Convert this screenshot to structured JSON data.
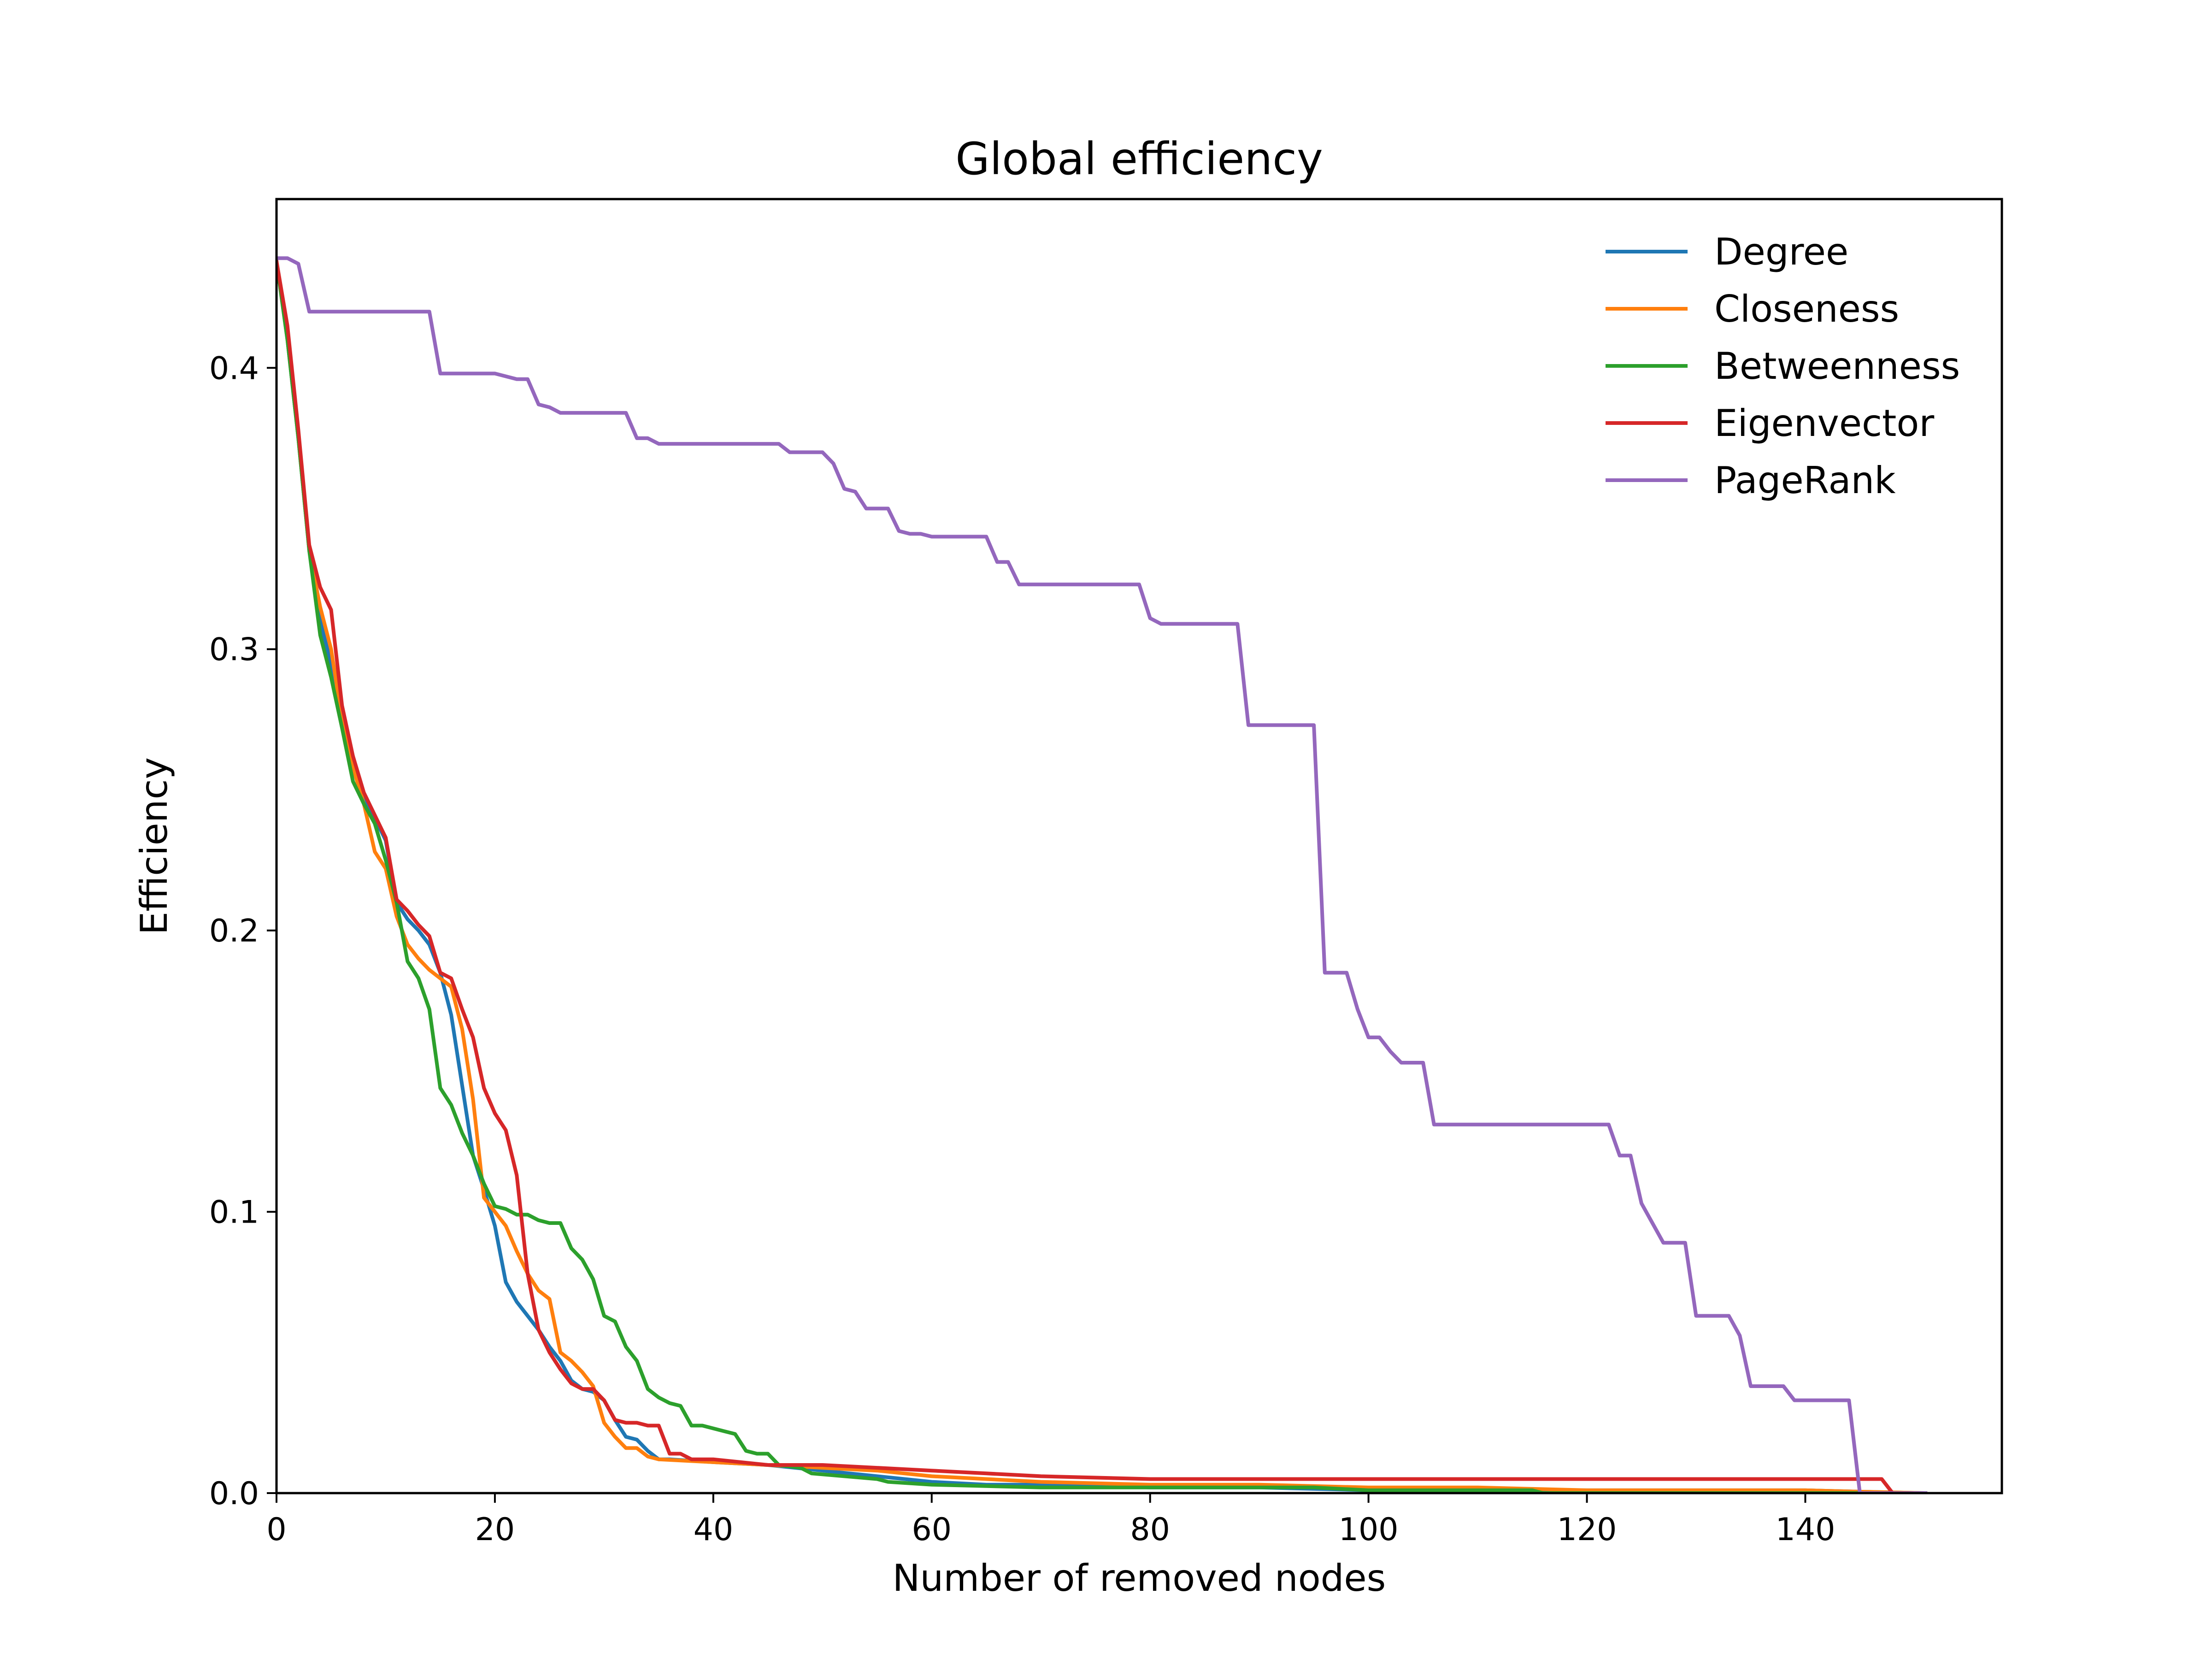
{
  "chart_data": {
    "type": "line",
    "title": "Global efficiency",
    "xlabel": "Number of removed nodes",
    "ylabel": "Efficiency",
    "xlim": [
      0,
      158
    ],
    "ylim": [
      0,
      0.46
    ],
    "xticks": [
      0,
      20,
      40,
      60,
      80,
      100,
      120,
      140
    ],
    "xtick_labels": [
      "0",
      "20",
      "40",
      "60",
      "80",
      "100",
      "120",
      "140"
    ],
    "yticks": [
      0.0,
      0.1,
      0.2,
      0.3,
      0.4
    ],
    "ytick_labels": [
      "0.0",
      "0.1",
      "0.2",
      "0.3",
      "0.4"
    ],
    "grid": false,
    "legend_position": "top-right",
    "series": [
      {
        "name": "Degree",
        "color": "#1f77b4",
        "points": [
          [
            0,
            0.438
          ],
          [
            1,
            0.41
          ],
          [
            2,
            0.375
          ],
          [
            3,
            0.335
          ],
          [
            4,
            0.31
          ],
          [
            5,
            0.295
          ],
          [
            6,
            0.275
          ],
          [
            7,
            0.258
          ],
          [
            8,
            0.248
          ],
          [
            9,
            0.24
          ],
          [
            10,
            0.232
          ],
          [
            11,
            0.21
          ],
          [
            12,
            0.204
          ],
          [
            13,
            0.2
          ],
          [
            14,
            0.195
          ],
          [
            15,
            0.185
          ],
          [
            16,
            0.17
          ],
          [
            17,
            0.145
          ],
          [
            18,
            0.12
          ],
          [
            19,
            0.108
          ],
          [
            20,
            0.095
          ],
          [
            21,
            0.075
          ],
          [
            22,
            0.068
          ],
          [
            23,
            0.063
          ],
          [
            24,
            0.058
          ],
          [
            25,
            0.052
          ],
          [
            26,
            0.047
          ],
          [
            27,
            0.04
          ],
          [
            28,
            0.037
          ],
          [
            29,
            0.036
          ],
          [
            30,
            0.033
          ],
          [
            31,
            0.026
          ],
          [
            32,
            0.02
          ],
          [
            33,
            0.019
          ],
          [
            34,
            0.015
          ],
          [
            35,
            0.012
          ],
          [
            36,
            0.012
          ],
          [
            40,
            0.011
          ],
          [
            45,
            0.01
          ],
          [
            50,
            0.008
          ],
          [
            55,
            0.006
          ],
          [
            60,
            0.004
          ],
          [
            65,
            0.003
          ],
          [
            70,
            0.003
          ],
          [
            80,
            0.002
          ],
          [
            90,
            0.002
          ],
          [
            100,
            0.001
          ],
          [
            110,
            0.001
          ],
          [
            120,
            0.001
          ],
          [
            130,
            0.001
          ],
          [
            140,
            0.001
          ],
          [
            145,
            0.0005
          ],
          [
            151,
            0.0
          ]
        ]
      },
      {
        "name": "Closeness",
        "color": "#ff7f0e",
        "points": [
          [
            0,
            0.438
          ],
          [
            1,
            0.41
          ],
          [
            2,
            0.375
          ],
          [
            3,
            0.335
          ],
          [
            4,
            0.315
          ],
          [
            5,
            0.3
          ],
          [
            6,
            0.275
          ],
          [
            7,
            0.258
          ],
          [
            8,
            0.245
          ],
          [
            9,
            0.228
          ],
          [
            10,
            0.222
          ],
          [
            11,
            0.205
          ],
          [
            12,
            0.195
          ],
          [
            13,
            0.19
          ],
          [
            14,
            0.186
          ],
          [
            15,
            0.183
          ],
          [
            16,
            0.18
          ],
          [
            17,
            0.165
          ],
          [
            18,
            0.14
          ],
          [
            19,
            0.105
          ],
          [
            20,
            0.1
          ],
          [
            21,
            0.095
          ],
          [
            22,
            0.086
          ],
          [
            23,
            0.078
          ],
          [
            24,
            0.072
          ],
          [
            25,
            0.069
          ],
          [
            26,
            0.05
          ],
          [
            27,
            0.047
          ],
          [
            28,
            0.043
          ],
          [
            29,
            0.038
          ],
          [
            30,
            0.025
          ],
          [
            31,
            0.02
          ],
          [
            32,
            0.016
          ],
          [
            33,
            0.016
          ],
          [
            34,
            0.013
          ],
          [
            35,
            0.012
          ],
          [
            40,
            0.011
          ],
          [
            45,
            0.01
          ],
          [
            50,
            0.009
          ],
          [
            55,
            0.008
          ],
          [
            60,
            0.006
          ],
          [
            65,
            0.005
          ],
          [
            70,
            0.004
          ],
          [
            80,
            0.003
          ],
          [
            90,
            0.003
          ],
          [
            100,
            0.002
          ],
          [
            110,
            0.002
          ],
          [
            120,
            0.001
          ],
          [
            130,
            0.001
          ],
          [
            140,
            0.001
          ],
          [
            145,
            0.0005
          ],
          [
            151,
            0.0
          ]
        ]
      },
      {
        "name": "Betweenness",
        "color": "#2ca02c",
        "points": [
          [
            0,
            0.438
          ],
          [
            1,
            0.41
          ],
          [
            2,
            0.375
          ],
          [
            3,
            0.335
          ],
          [
            4,
            0.305
          ],
          [
            5,
            0.29
          ],
          [
            6,
            0.272
          ],
          [
            7,
            0.253
          ],
          [
            8,
            0.245
          ],
          [
            9,
            0.238
          ],
          [
            10,
            0.225
          ],
          [
            11,
            0.21
          ],
          [
            12,
            0.189
          ],
          [
            13,
            0.183
          ],
          [
            14,
            0.172
          ],
          [
            15,
            0.144
          ],
          [
            16,
            0.138
          ],
          [
            17,
            0.128
          ],
          [
            18,
            0.12
          ],
          [
            19,
            0.11
          ],
          [
            20,
            0.102
          ],
          [
            21,
            0.101
          ],
          [
            22,
            0.099
          ],
          [
            23,
            0.099
          ],
          [
            24,
            0.097
          ],
          [
            25,
            0.096
          ],
          [
            26,
            0.096
          ],
          [
            27,
            0.087
          ],
          [
            28,
            0.083
          ],
          [
            29,
            0.076
          ],
          [
            30,
            0.063
          ],
          [
            31,
            0.061
          ],
          [
            32,
            0.052
          ],
          [
            33,
            0.047
          ],
          [
            34,
            0.037
          ],
          [
            35,
            0.034
          ],
          [
            36,
            0.032
          ],
          [
            37,
            0.031
          ],
          [
            38,
            0.024
          ],
          [
            39,
            0.024
          ],
          [
            40,
            0.023
          ],
          [
            41,
            0.022
          ],
          [
            42,
            0.021
          ],
          [
            43,
            0.015
          ],
          [
            44,
            0.014
          ],
          [
            45,
            0.014
          ],
          [
            46,
            0.01
          ],
          [
            48,
            0.009
          ],
          [
            49,
            0.007
          ],
          [
            55,
            0.005
          ],
          [
            56,
            0.004
          ],
          [
            60,
            0.003
          ],
          [
            70,
            0.002
          ],
          [
            80,
            0.002
          ],
          [
            90,
            0.002
          ],
          [
            95,
            0.002
          ],
          [
            100,
            0.001
          ],
          [
            110,
            0.001
          ],
          [
            115,
            0.001
          ],
          [
            116,
            0.0
          ],
          [
            145,
            0.0
          ]
        ]
      },
      {
        "name": "Eigenvector",
        "color": "#d62728",
        "points": [
          [
            0,
            0.438
          ],
          [
            1,
            0.415
          ],
          [
            2,
            0.378
          ],
          [
            3,
            0.337
          ],
          [
            4,
            0.322
          ],
          [
            5,
            0.314
          ],
          [
            6,
            0.28
          ],
          [
            7,
            0.262
          ],
          [
            8,
            0.249
          ],
          [
            9,
            0.241
          ],
          [
            10,
            0.233
          ],
          [
            11,
            0.211
          ],
          [
            12,
            0.207
          ],
          [
            13,
            0.202
          ],
          [
            14,
            0.198
          ],
          [
            15,
            0.185
          ],
          [
            16,
            0.183
          ],
          [
            17,
            0.172
          ],
          [
            18,
            0.162
          ],
          [
            19,
            0.144
          ],
          [
            20,
            0.135
          ],
          [
            21,
            0.129
          ],
          [
            22,
            0.113
          ],
          [
            23,
            0.078
          ],
          [
            24,
            0.058
          ],
          [
            25,
            0.05
          ],
          [
            26,
            0.044
          ],
          [
            27,
            0.039
          ],
          [
            28,
            0.037
          ],
          [
            29,
            0.037
          ],
          [
            30,
            0.033
          ],
          [
            31,
            0.026
          ],
          [
            32,
            0.025
          ],
          [
            33,
            0.025
          ],
          [
            34,
            0.024
          ],
          [
            35,
            0.024
          ],
          [
            36,
            0.014
          ],
          [
            37,
            0.014
          ],
          [
            38,
            0.012
          ],
          [
            40,
            0.012
          ],
          [
            45,
            0.01
          ],
          [
            50,
            0.01
          ],
          [
            55,
            0.009
          ],
          [
            60,
            0.008
          ],
          [
            65,
            0.007
          ],
          [
            70,
            0.006
          ],
          [
            80,
            0.005
          ],
          [
            90,
            0.005
          ],
          [
            100,
            0.005
          ],
          [
            110,
            0.005
          ],
          [
            120,
            0.005
          ],
          [
            130,
            0.005
          ],
          [
            140,
            0.005
          ],
          [
            147,
            0.005
          ],
          [
            148,
            0.0
          ]
        ]
      },
      {
        "name": "PageRank",
        "color": "#9467bd",
        "points": [
          [
            0,
            0.439
          ],
          [
            1,
            0.439
          ],
          [
            2,
            0.437
          ],
          [
            3,
            0.42
          ],
          [
            4,
            0.42
          ],
          [
            14,
            0.42
          ],
          [
            15,
            0.398
          ],
          [
            20,
            0.398
          ],
          [
            21,
            0.397
          ],
          [
            22,
            0.396
          ],
          [
            23,
            0.396
          ],
          [
            24,
            0.387
          ],
          [
            25,
            0.386
          ],
          [
            26,
            0.384
          ],
          [
            32,
            0.384
          ],
          [
            33,
            0.375
          ],
          [
            34,
            0.375
          ],
          [
            35,
            0.373
          ],
          [
            46,
            0.373
          ],
          [
            47,
            0.37
          ],
          [
            50,
            0.37
          ],
          [
            51,
            0.366
          ],
          [
            52,
            0.357
          ],
          [
            53,
            0.356
          ],
          [
            54,
            0.35
          ],
          [
            56,
            0.35
          ],
          [
            57,
            0.342
          ],
          [
            58,
            0.341
          ],
          [
            59,
            0.341
          ],
          [
            60,
            0.34
          ],
          [
            65,
            0.34
          ],
          [
            66,
            0.331
          ],
          [
            67,
            0.331
          ],
          [
            68,
            0.323
          ],
          [
            79,
            0.323
          ],
          [
            80,
            0.311
          ],
          [
            81,
            0.309
          ],
          [
            88,
            0.309
          ],
          [
            89,
            0.273
          ],
          [
            95,
            0.273
          ],
          [
            96,
            0.185
          ],
          [
            98,
            0.185
          ],
          [
            99,
            0.172
          ],
          [
            100,
            0.162
          ],
          [
            101,
            0.162
          ],
          [
            102,
            0.157
          ],
          [
            103,
            0.153
          ],
          [
            105,
            0.153
          ],
          [
            106,
            0.131
          ],
          [
            122,
            0.131
          ],
          [
            123,
            0.12
          ],
          [
            124,
            0.12
          ],
          [
            125,
            0.103
          ],
          [
            126,
            0.096
          ],
          [
            127,
            0.089
          ],
          [
            129,
            0.089
          ],
          [
            130,
            0.063
          ],
          [
            133,
            0.063
          ],
          [
            134,
            0.056
          ],
          [
            135,
            0.038
          ],
          [
            138,
            0.038
          ],
          [
            139,
            0.033
          ],
          [
            144,
            0.033
          ],
          [
            145,
            0.0
          ],
          [
            151,
            0.0
          ]
        ]
      }
    ]
  }
}
